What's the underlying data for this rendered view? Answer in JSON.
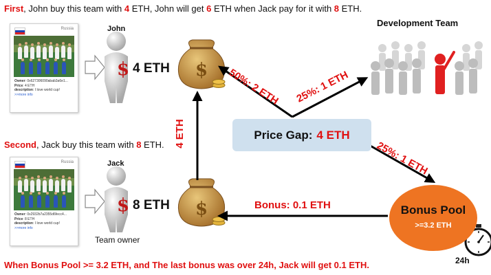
{
  "header": {
    "first_word": "First",
    "first_a": ", John buy this team with ",
    "first_price": "4",
    "first_b": " ETH,  John will get ",
    "first_gain": "6",
    "first_c": " ETH when Jack pay for it with ",
    "first_pay": "8",
    "first_d": " ETH.",
    "second_word": "Second",
    "second_a": ", Jack buy this team with ",
    "second_price": "8",
    "second_b": " ETH."
  },
  "cards": [
    {
      "country": "Russia",
      "owner_label": "Owner",
      "owner_value": ": 0x627306090abab3a6e1...",
      "price_label": "Price",
      "price_value": ": 4 ETH",
      "desc_label": "description",
      "desc_value": ": I love world cup!",
      "more": ">>more info"
    },
    {
      "country": "Russia",
      "owner_label": "Owner",
      "owner_value": ": 0x2932b7a2355d6fecc4...",
      "price_label": "Price",
      "price_value": ": 8 ETH",
      "desc_label": "description",
      "desc_value": ": I love world cup!",
      "more": ">>more info"
    }
  ],
  "people": {
    "john_name": "John",
    "john_eth": "4 ETH",
    "jack_name": "Jack",
    "jack_eth": "8 ETH",
    "jack_role": "Team owner",
    "dollar": "$"
  },
  "dev_team": "Development Team",
  "price_gap": {
    "label": "Price Gap:",
    "value": "4 ETH"
  },
  "flows": {
    "to_john": "50%: 2 ETH",
    "to_dev": "25%: 1 ETH",
    "to_pool": "25%: 1 ETH",
    "up_arrow": "4 ETH",
    "bonus": "Bonus: 0.1 ETH"
  },
  "bonus_pool": {
    "title": "Bonus Pool",
    "threshold": ">=3.2 ETH"
  },
  "timer": "24h",
  "footer": "When Bonus Pool >= 3.2 ETH, and The last bonus was over 24h, Jack will get 0.1 ETH.",
  "colors": {
    "accent_red": "#e01010",
    "pool_orange": "#ee7422",
    "gap_blue": "#cfe0ee"
  }
}
